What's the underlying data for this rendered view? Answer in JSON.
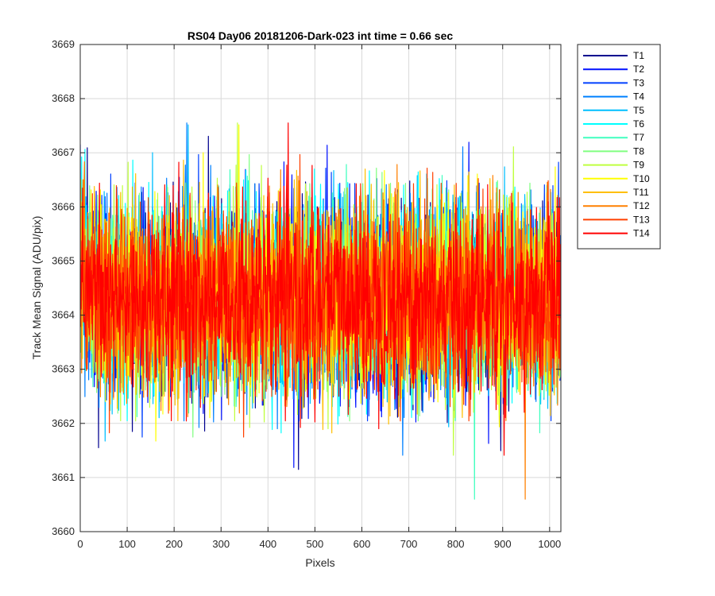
{
  "chart_data": {
    "type": "line",
    "title": "RS04 Day06 20181206-Dark-023 int time = 0.66 sec",
    "xlabel": "Pixels",
    "ylabel": "Track Mean Signal (ADU/pix)",
    "xlim": [
      0,
      1024
    ],
    "ylim": [
      3660,
      3669
    ],
    "x_ticks": [
      0,
      100,
      200,
      300,
      400,
      500,
      600,
      700,
      800,
      900,
      1000
    ],
    "y_ticks": [
      3660,
      3661,
      3662,
      3663,
      3664,
      3665,
      3666,
      3667,
      3668,
      3669
    ],
    "grid": true,
    "legend_position": "outside-top-right",
    "noise_model": {
      "mean": 3664.3,
      "std": 0.85,
      "clip_min": 3660.6,
      "clip_max": 3668.1
    },
    "series": [
      {
        "name": "T1",
        "color": "#00008F"
      },
      {
        "name": "T2",
        "color": "#0010FF"
      },
      {
        "name": "T3",
        "color": "#0040FF"
      },
      {
        "name": "T4",
        "color": "#0080FF"
      },
      {
        "name": "T5",
        "color": "#00BFFF"
      },
      {
        "name": "T6",
        "color": "#00FFFF"
      },
      {
        "name": "T7",
        "color": "#40FFBF"
      },
      {
        "name": "T8",
        "color": "#80FF80"
      },
      {
        "name": "T9",
        "color": "#BFFF40"
      },
      {
        "name": "T10",
        "color": "#FFFF00"
      },
      {
        "name": "T11",
        "color": "#FFBF00"
      },
      {
        "name": "T12",
        "color": "#FF8000"
      },
      {
        "name": "T13",
        "color": "#FF4000"
      },
      {
        "name": "T14",
        "color": "#FF0000"
      }
    ]
  }
}
